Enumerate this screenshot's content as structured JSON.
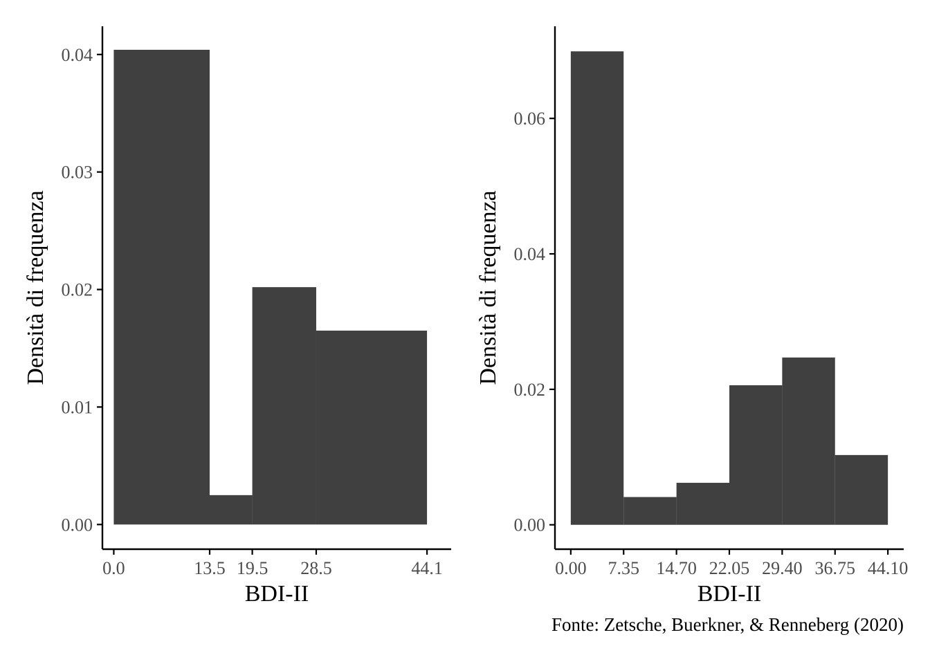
{
  "colors": {
    "bar": "#404040",
    "axis": "#000000",
    "tick_text": "#4d4d4d",
    "background": "#ffffff"
  },
  "chart_data": [
    {
      "type": "bar",
      "title": "",
      "xlabel": "BDI-II",
      "ylabel": "Densità di frequenza",
      "bins": [
        {
          "x0": 0.0,
          "x1": 13.5,
          "density": 0.0404
        },
        {
          "x0": 13.5,
          "x1": 19.5,
          "density": 0.0025
        },
        {
          "x0": 19.5,
          "x1": 28.5,
          "density": 0.0202
        },
        {
          "x0": 28.5,
          "x1": 44.1,
          "density": 0.0165
        }
      ],
      "xticks": [
        0.0,
        13.5,
        19.5,
        28.5,
        44.1
      ],
      "xtick_labels": [
        "0.0",
        "13.5",
        "19.5",
        "28.5",
        "44.1"
      ],
      "yticks": [
        0.0,
        0.01,
        0.02,
        0.03,
        0.04
      ],
      "ytick_labels": [
        "0.00",
        "0.01",
        "0.02",
        "0.03",
        "0.04"
      ],
      "xlim": [
        -1.6,
        47.5
      ],
      "ylim": [
        -0.0021,
        0.0424
      ]
    },
    {
      "type": "bar",
      "title": "",
      "xlabel": "BDI-II",
      "ylabel": "Densità di frequenza",
      "bins": [
        {
          "x0": 0.0,
          "x1": 7.35,
          "density": 0.0699
        },
        {
          "x0": 7.35,
          "x1": 14.7,
          "density": 0.0041
        },
        {
          "x0": 14.7,
          "x1": 22.05,
          "density": 0.0062
        },
        {
          "x0": 22.05,
          "x1": 29.4,
          "density": 0.0206
        },
        {
          "x0": 29.4,
          "x1": 36.75,
          "density": 0.0247
        },
        {
          "x0": 36.75,
          "x1": 44.1,
          "density": 0.0103
        }
      ],
      "xticks": [
        0.0,
        7.35,
        14.7,
        22.05,
        29.4,
        36.75,
        44.1
      ],
      "xtick_labels": [
        "0.00",
        "7.35",
        "14.70",
        "22.05",
        "29.40",
        "36.75",
        "44.10"
      ],
      "yticks": [
        0.0,
        0.02,
        0.04,
        0.06
      ],
      "ytick_labels": [
        "0.00",
        "0.02",
        "0.04",
        "0.06"
      ],
      "xlim": [
        -2.2,
        46.3
      ],
      "ylim": [
        -0.0036,
        0.0736
      ]
    }
  ],
  "caption": "Fonte: Zetsche, Buerkner, & Renneberg (2020)"
}
